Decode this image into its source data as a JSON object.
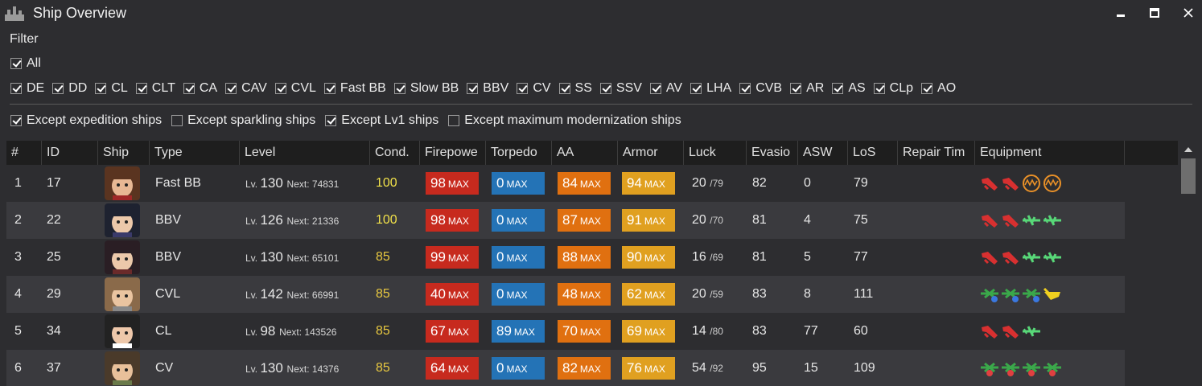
{
  "window": {
    "title": "Ship Overview"
  },
  "filter": {
    "label": "Filter",
    "all": {
      "label": "All",
      "checked": true
    },
    "types": [
      {
        "label": "DE",
        "checked": true
      },
      {
        "label": "DD",
        "checked": true
      },
      {
        "label": "CL",
        "checked": true
      },
      {
        "label": "CLT",
        "checked": true
      },
      {
        "label": "CA",
        "checked": true
      },
      {
        "label": "CAV",
        "checked": true
      },
      {
        "label": "CVL",
        "checked": true
      },
      {
        "label": "Fast BB",
        "checked": true
      },
      {
        "label": "Slow BB",
        "checked": true
      },
      {
        "label": "BBV",
        "checked": true
      },
      {
        "label": "CV",
        "checked": true
      },
      {
        "label": "SS",
        "checked": true
      },
      {
        "label": "SSV",
        "checked": true
      },
      {
        "label": "AV",
        "checked": true
      },
      {
        "label": "LHA",
        "checked": true
      },
      {
        "label": "CVB",
        "checked": true
      },
      {
        "label": "AR",
        "checked": true
      },
      {
        "label": "AS",
        "checked": true
      },
      {
        "label": "CLp",
        "checked": true
      },
      {
        "label": "AO",
        "checked": true
      }
    ],
    "excepts": [
      {
        "label": "Except expedition ships",
        "checked": true
      },
      {
        "label": "Except sparkling ships",
        "checked": false
      },
      {
        "label": "Except Lv1 ships",
        "checked": true
      },
      {
        "label": "Except maximum modernization ships",
        "checked": false
      }
    ]
  },
  "table": {
    "columns": [
      "#",
      "ID",
      "Ship",
      "Type",
      "Level",
      "Cond.",
      "Firepowe",
      "Torpedo",
      "AA",
      "Armor",
      "Luck",
      "Evasio",
      "ASW",
      "LoS",
      "Repair Tim",
      "Equipment"
    ],
    "lv_prefix": "Lv.",
    "next_prefix": "Next:",
    "max_label": "MAX",
    "rows": [
      {
        "num": "1",
        "id": "17",
        "type": "Fast BB",
        "level": "130",
        "next": "74831",
        "cond": "100",
        "fp": "98",
        "tp": "0",
        "aa": "84",
        "ar": "94",
        "luck": "20",
        "luck_max": "/79",
        "ev": "82",
        "asw": "0",
        "los": "79",
        "equip": [
          "red-gun-icon",
          "red-gun-icon",
          "orange-radar-icon",
          "orange-radar-icon"
        ]
      },
      {
        "num": "2",
        "id": "22",
        "type": "BBV",
        "level": "126",
        "next": "21336",
        "cond": "100",
        "fp": "98",
        "tp": "0",
        "aa": "87",
        "ar": "91",
        "luck": "20",
        "luck_max": "/70",
        "ev": "81",
        "asw": "4",
        "los": "75",
        "equip": [
          "red-gun-icon",
          "red-gun-icon",
          "green-seaplane-icon",
          "green-seaplane-icon"
        ]
      },
      {
        "num": "3",
        "id": "25",
        "type": "BBV",
        "level": "130",
        "next": "65101",
        "cond": "85",
        "fp": "99",
        "tp": "0",
        "aa": "88",
        "ar": "90",
        "luck": "16",
        "luck_max": "/69",
        "ev": "81",
        "asw": "5",
        "los": "77",
        "equip": [
          "red-gun-icon",
          "red-gun-icon",
          "green-seaplane-icon",
          "green-seaplane-icon"
        ]
      },
      {
        "num": "4",
        "id": "29",
        "type": "CVL",
        "level": "142",
        "next": "66991",
        "cond": "85",
        "fp": "40",
        "tp": "0",
        "aa": "48",
        "ar": "62",
        "luck": "20",
        "luck_max": "/59",
        "ev": "83",
        "asw": "8",
        "los": "111",
        "equip": [
          "green-fighter-icon",
          "green-fighter-icon",
          "green-fighter-icon",
          "yellow-plane-icon"
        ]
      },
      {
        "num": "5",
        "id": "34",
        "type": "CL",
        "level": "98",
        "next": "143526",
        "cond": "85",
        "fp": "67",
        "tp": "89",
        "aa": "70",
        "ar": "69",
        "luck": "14",
        "luck_max": "/80",
        "ev": "83",
        "asw": "77",
        "los": "60",
        "equip": [
          "red-gun-icon",
          "red-gun-icon",
          "green-seaplane-icon"
        ]
      },
      {
        "num": "6",
        "id": "37",
        "type": "CV",
        "level": "130",
        "next": "14376",
        "cond": "85",
        "fp": "64",
        "tp": "0",
        "aa": "82",
        "ar": "76",
        "luck": "54",
        "luck_max": "/92",
        "ev": "95",
        "asw": "15",
        "los": "109",
        "equip": [
          "green-bomber-icon",
          "green-bomber-icon",
          "green-bomber-icon",
          "green-bomber-icon"
        ]
      }
    ]
  },
  "colors": {
    "firepower": "#c72a1e",
    "torpedo": "#2473b6",
    "aa": "#e07010",
    "armor": "#e0a020",
    "cond_high": "#f2e24a"
  }
}
